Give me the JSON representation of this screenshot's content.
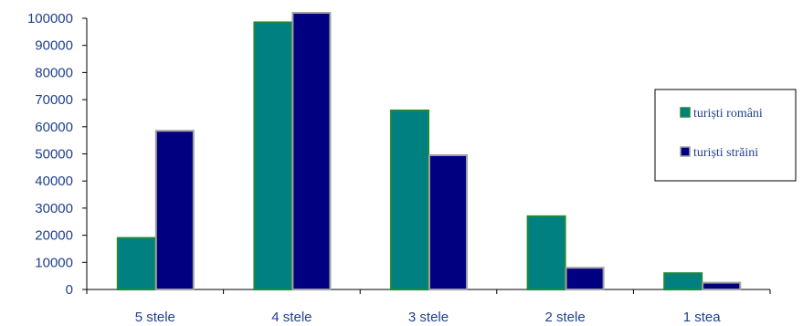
{
  "chart_data": {
    "type": "bar",
    "categories": [
      "5 stele",
      "4 stele",
      "3 stele",
      "2 stele",
      "1 stea"
    ],
    "series": [
      {
        "name": "turiști români",
        "values": [
          19000,
          98500,
          66000,
          27000,
          6000
        ],
        "color": "#008080",
        "border": "#1f8a3a"
      },
      {
        "name": "turiști străini",
        "values": [
          58500,
          102000,
          49500,
          8000,
          2500
        ],
        "color": "#000080",
        "border": "#a0a0a0"
      }
    ],
    "ylim": [
      0,
      100000
    ],
    "yticks": [
      "0",
      "10000",
      "20000",
      "30000",
      "40000",
      "50000",
      "60000",
      "70000",
      "80000",
      "90000",
      "100000"
    ],
    "title": "",
    "xlabel": "",
    "ylabel": "",
    "grid": false,
    "legend_position": "right"
  }
}
